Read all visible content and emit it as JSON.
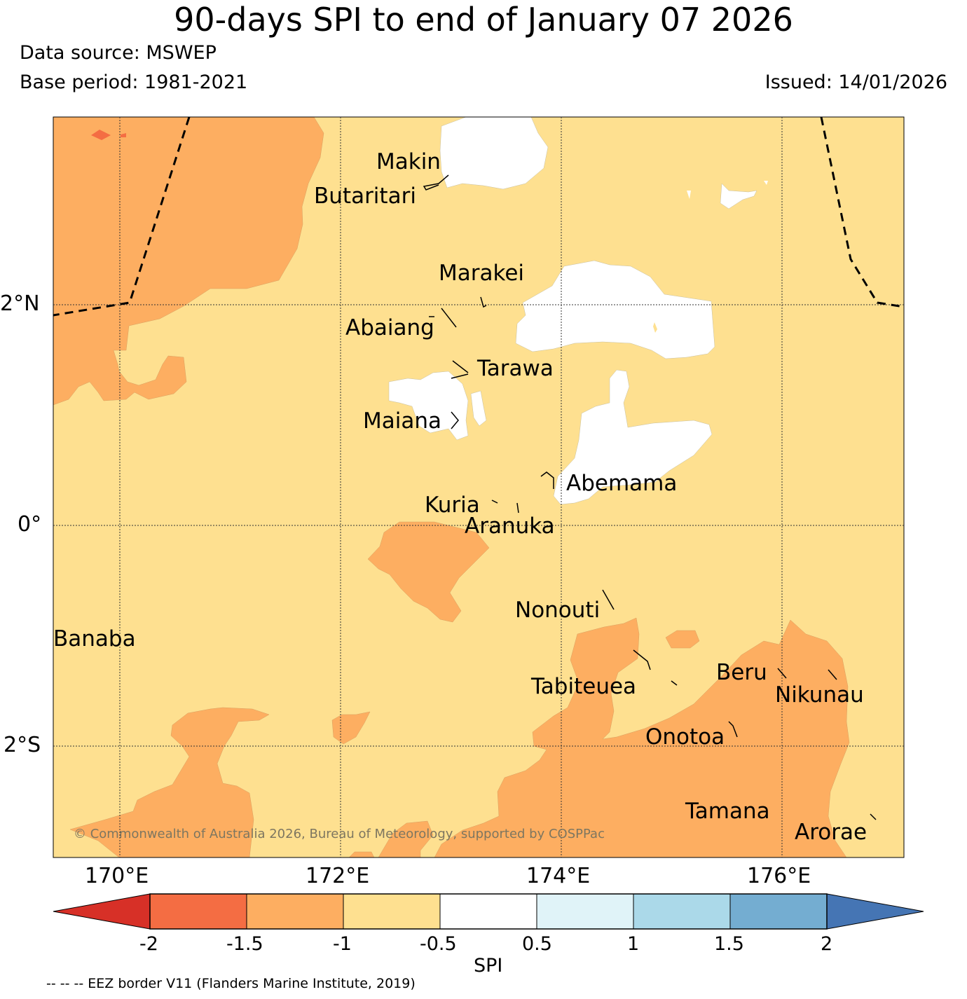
{
  "header": {
    "title": "90-days SPI to end of January 07 2026",
    "data_source": "Data source: MSWEP",
    "base_period": "Base period: 1981-2021",
    "issued": "Issued: 14/01/2026"
  },
  "map": {
    "lon_labels": [
      "170°E",
      "172°E",
      "174°E",
      "176°E"
    ],
    "lat_labels": [
      "2°N",
      "0°",
      "2°S"
    ],
    "copyright": "© Commonwealth of Australia 2026, Bureau of Meteorology, supported by COSPPac",
    "islands": [
      "Makin",
      "Butaritari",
      "Marakei",
      "Abaiang",
      "Tarawa",
      "Maiana",
      "Abemama",
      "Kuria",
      "Aranuka",
      "Nonouti",
      "Banaba",
      "Tabiteuea",
      "Beru",
      "Nikunau",
      "Onotoa",
      "Tamana",
      "Arorae"
    ]
  },
  "colorbar": {
    "label": "SPI",
    "ticks": [
      "-2",
      "-1.5",
      "-1",
      "-0.5",
      "0.5",
      "1",
      "1.5",
      "2"
    ],
    "colors": {
      "under": "#d73027",
      "c1": "#f46d43",
      "c2": "#fdae61",
      "c3": "#fee090",
      "c4": "#ffffff",
      "c5": "#e0f3f8",
      "c6": "#abd9e9",
      "c7": "#74add1",
      "over": "#4575b4"
    }
  },
  "footer": {
    "eez": "-- -- -- EEZ border V11 (Flanders Marine Institute, 2019)"
  }
}
